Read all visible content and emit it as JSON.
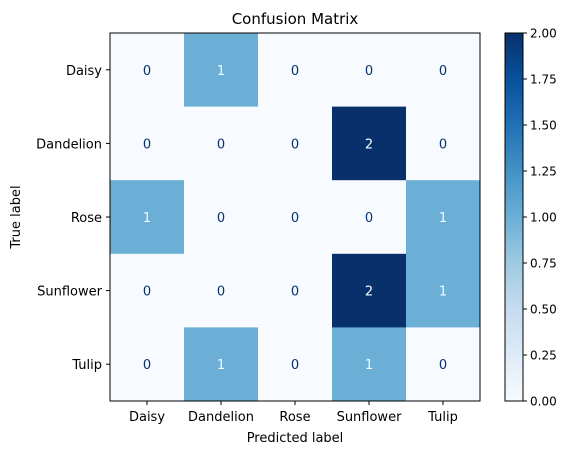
{
  "chart_data": {
    "type": "heatmap",
    "title": "Confusion Matrix",
    "xlabel": "Predicted label",
    "ylabel": "True label",
    "x_categories": [
      "Daisy",
      "Dandelion",
      "Rose",
      "Sunflower",
      "Tulip"
    ],
    "y_categories": [
      "Daisy",
      "Dandelion",
      "Rose",
      "Sunflower",
      "Tulip"
    ],
    "values": [
      [
        0,
        1,
        0,
        0,
        0
      ],
      [
        0,
        0,
        0,
        2,
        0
      ],
      [
        1,
        0,
        0,
        0,
        1
      ],
      [
        0,
        0,
        0,
        2,
        1
      ],
      [
        0,
        1,
        0,
        1,
        0
      ]
    ],
    "colormap": "Blues",
    "vmin": 0,
    "vmax": 2,
    "colorbar_ticks": [
      "0.00",
      "0.25",
      "0.50",
      "0.75",
      "1.00",
      "1.25",
      "1.50",
      "1.75",
      "2.00"
    ],
    "colors": {
      "low": "#f7fbff",
      "mid": "#6baed6",
      "high": "#08306b",
      "text_dark": "#08306b",
      "text_light": "#f7fbff"
    }
  }
}
